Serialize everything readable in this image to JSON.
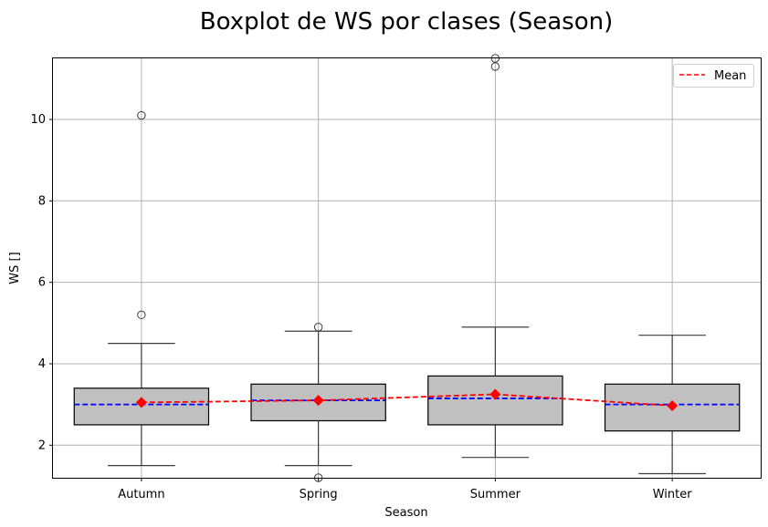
{
  "chart_data": {
    "type": "box",
    "title": "Boxplot de WS por clases (Season)",
    "xlabel": "Season",
    "ylabel": "WS []",
    "ylim": [
      1.2,
      11.5
    ],
    "yticks": [
      2,
      4,
      6,
      8,
      10
    ],
    "grid": true,
    "legend": {
      "position": "top-right",
      "entries": [
        "Mean"
      ]
    },
    "colors": {
      "box_fill": "#c0c0c0",
      "median_line": "#0000ff",
      "mean_line": "#ff0000",
      "mean_marker": "#ff0000",
      "whisker": "#3d3d3d",
      "grid": "#b0b0b0"
    },
    "categories": [
      "Autumn",
      "Spring",
      "Summer",
      "Winter"
    ],
    "boxes": [
      {
        "name": "Autumn",
        "whisker_low": 1.5,
        "q1": 2.5,
        "median": 3.0,
        "q3": 3.4,
        "whisker_high": 4.5,
        "mean": 3.05,
        "outliers": [
          5.2,
          10.1
        ]
      },
      {
        "name": "Spring",
        "whisker_low": 1.5,
        "q1": 2.6,
        "median": 3.1,
        "q3": 3.5,
        "whisker_high": 4.8,
        "mean": 3.1,
        "outliers": [
          1.2,
          4.9
        ]
      },
      {
        "name": "Summer",
        "whisker_low": 1.7,
        "q1": 2.5,
        "median": 3.15,
        "q3": 3.7,
        "whisker_high": 4.9,
        "mean": 3.25,
        "outliers": [
          11.3,
          11.5
        ]
      },
      {
        "name": "Winter",
        "whisker_low": 1.3,
        "q1": 2.35,
        "median": 3.0,
        "q3": 3.5,
        "whisker_high": 4.7,
        "mean": 2.97,
        "outliers": []
      }
    ]
  }
}
